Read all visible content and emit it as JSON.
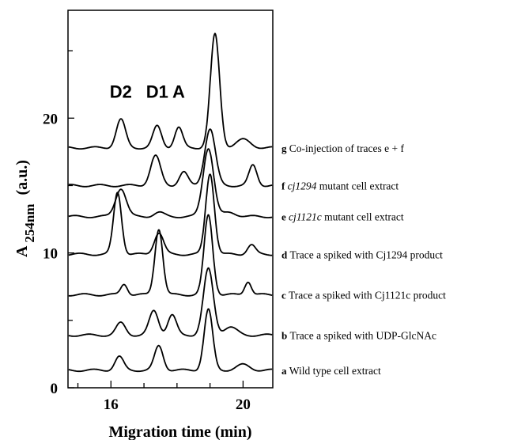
{
  "chart_data": {
    "type": "line",
    "xlabel": "Migration time (min)",
    "ylabel_main": "A",
    "ylabel_sub": "254nm",
    "ylabel_unit": "(a.u.)",
    "xlim": [
      14.7,
      20.9
    ],
    "ylim": [
      0,
      28
    ],
    "x_ticks": [
      16,
      20
    ],
    "y_ticks": [
      0,
      10,
      20
    ],
    "grid": false,
    "peak_labels": [
      {
        "text": "D2",
        "x": 16.3
      },
      {
        "text": "D1",
        "x": 17.4
      },
      {
        "text": "A",
        "x": 18.05
      }
    ],
    "series": [
      {
        "name": "Wild type cell extract",
        "letter": "a",
        "italic_part": "",
        "baseline": 1.3,
        "peaks": [
          {
            "x": 16.25,
            "h": 1.0,
            "w": 0.13
          },
          {
            "x": 17.45,
            "h": 1.8,
            "w": 0.13
          },
          {
            "x": 18.95,
            "h": 4.5,
            "w": 0.13
          },
          {
            "x": 20.0,
            "h": 0.4,
            "w": 0.2
          }
        ]
      },
      {
        "name": "Trace a spiked with UDP-GlcNAc",
        "letter": "b",
        "italic_part": "",
        "baseline": 3.9,
        "peaks": [
          {
            "x": 16.3,
            "h": 0.9,
            "w": 0.14
          },
          {
            "x": 17.3,
            "h": 1.8,
            "w": 0.14
          },
          {
            "x": 17.85,
            "h": 1.5,
            "w": 0.13
          },
          {
            "x": 18.95,
            "h": 4.9,
            "w": 0.15
          },
          {
            "x": 19.6,
            "h": 0.6,
            "w": 0.2
          }
        ]
      },
      {
        "name": "Trace a spiked with Cj1121c product",
        "letter": "c",
        "italic_part": "",
        "baseline": 6.9,
        "peaks": [
          {
            "x": 16.4,
            "h": 0.8,
            "w": 0.1
          },
          {
            "x": 17.45,
            "h": 4.9,
            "w": 0.12
          },
          {
            "x": 18.95,
            "h": 5.9,
            "w": 0.13
          },
          {
            "x": 20.15,
            "h": 1.0,
            "w": 0.1
          }
        ]
      },
      {
        "name": "Trace a spiked with Cj1294 product",
        "letter": "d",
        "italic_part": "",
        "baseline": 9.9,
        "peaks": [
          {
            "x": 16.2,
            "h": 4.6,
            "w": 0.12
          },
          {
            "x": 17.45,
            "h": 1.6,
            "w": 0.14
          },
          {
            "x": 19.0,
            "h": 6.0,
            "w": 0.13
          },
          {
            "x": 20.25,
            "h": 0.7,
            "w": 0.12
          }
        ]
      },
      {
        "name": "cj1121c mutant cell extract",
        "letter": "e",
        "italic_part": "cj1121c",
        "baseline": 12.7,
        "peaks": [
          {
            "x": 16.3,
            "h": 2.1,
            "w": 0.16
          },
          {
            "x": 17.45,
            "h": 0.3,
            "w": 0.15
          },
          {
            "x": 18.95,
            "h": 5.1,
            "w": 0.16
          },
          {
            "x": 19.6,
            "h": 0.3,
            "w": 0.2
          }
        ]
      },
      {
        "name": "cj1294 mutant cell extract",
        "letter": "f",
        "italic_part": "cj1294",
        "baseline": 15.0,
        "peaks": [
          {
            "x": 17.35,
            "h": 2.2,
            "w": 0.15
          },
          {
            "x": 18.2,
            "h": 1.0,
            "w": 0.13
          },
          {
            "x": 19.0,
            "h": 4.2,
            "w": 0.16
          },
          {
            "x": 20.3,
            "h": 1.5,
            "w": 0.12
          }
        ]
      },
      {
        "name": "Co-injection of traces e + f",
        "letter": "g",
        "italic_part": "",
        "baseline": 17.8,
        "peaks": [
          {
            "x": 16.3,
            "h": 2.1,
            "w": 0.14
          },
          {
            "x": 17.4,
            "h": 1.6,
            "w": 0.13
          },
          {
            "x": 18.05,
            "h": 1.5,
            "w": 0.12
          },
          {
            "x": 19.15,
            "h": 8.4,
            "w": 0.14
          },
          {
            "x": 20.0,
            "h": 0.6,
            "w": 0.22
          }
        ]
      }
    ]
  }
}
